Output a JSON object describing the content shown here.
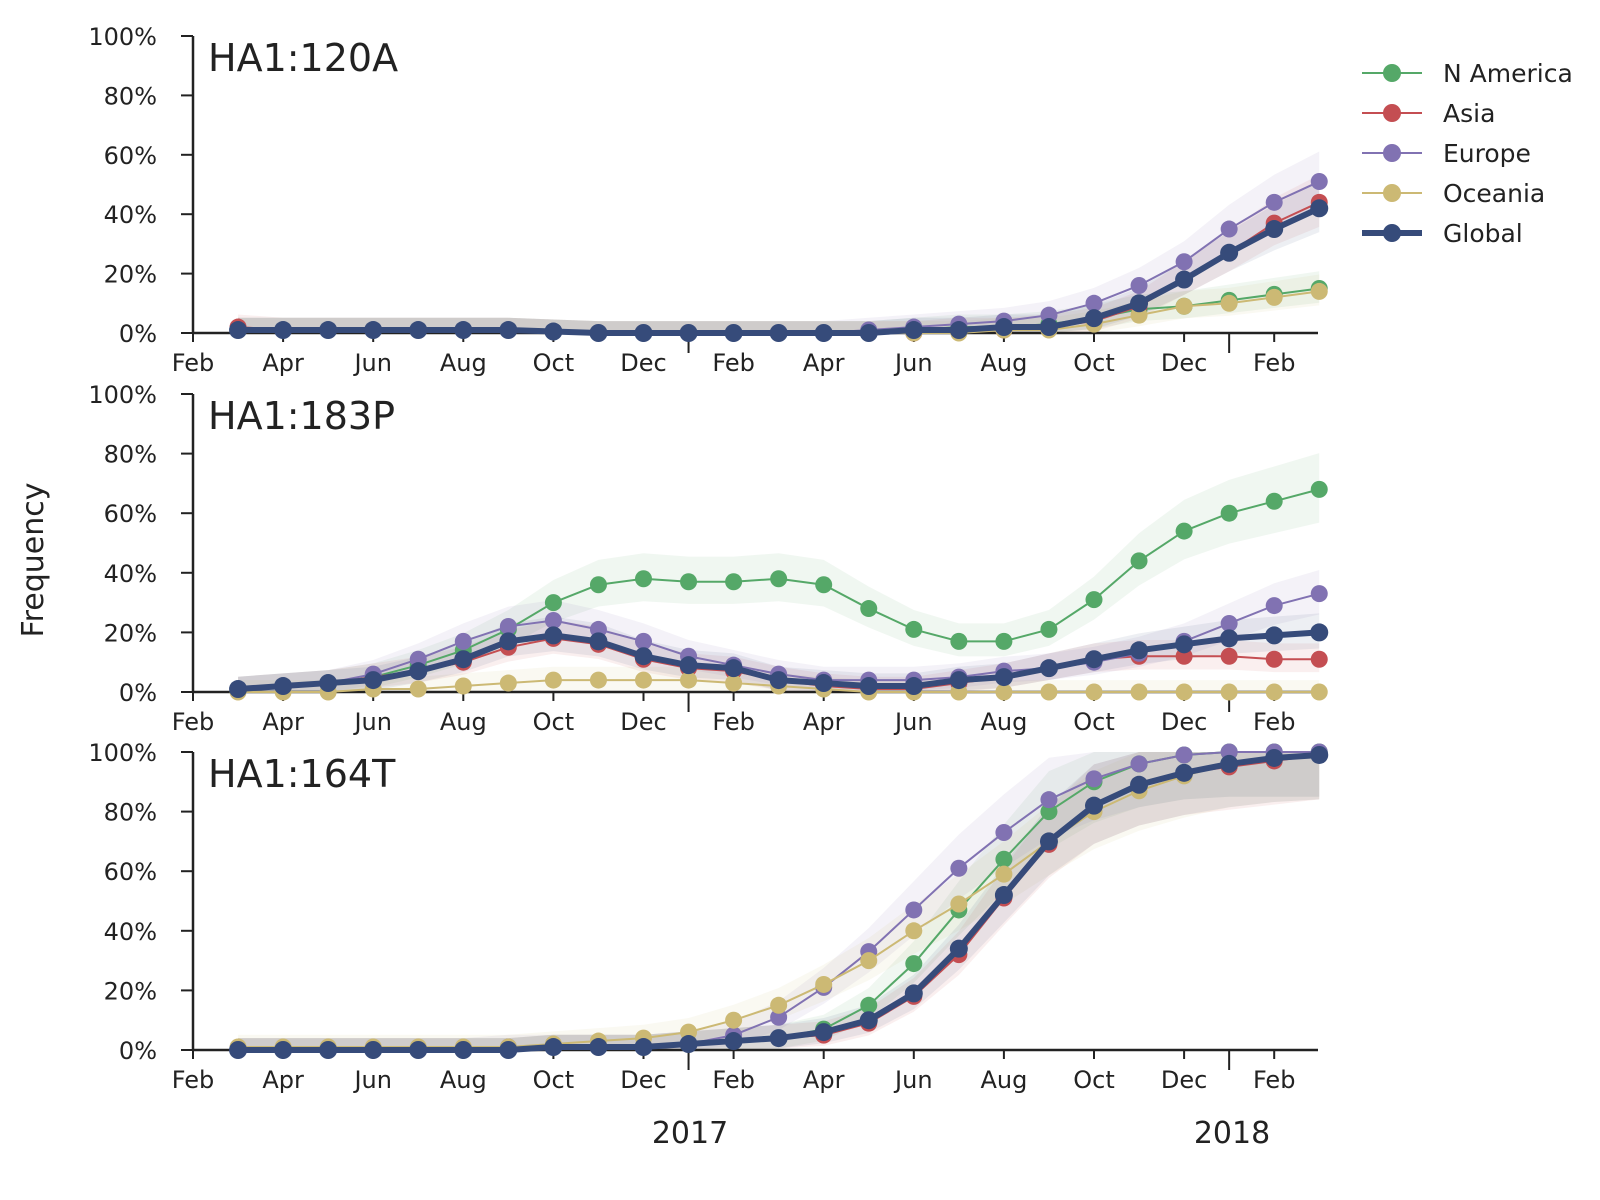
{
  "figure": {
    "ylabel": "Frequency",
    "year_labels": [
      "2017",
      "2018"
    ]
  },
  "legend": [
    {
      "name": "N America",
      "color": "#55a868"
    },
    {
      "name": "Asia",
      "color": "#c44e52"
    },
    {
      "name": "Europe",
      "color": "#8172b2"
    },
    {
      "name": "Oceania",
      "color": "#ccb974"
    },
    {
      "name": "Global",
      "color": "#364b7a"
    }
  ],
  "chart_data": [
    {
      "type": "line",
      "title": "HA1:120A",
      "xlabel": "",
      "ylabel": "Frequency",
      "x_tick_labels": [
        "Feb",
        "Apr",
        "Jun",
        "Aug",
        "Oct",
        "Dec",
        "Feb",
        "Apr",
        "Jun",
        "Aug",
        "Oct",
        "Dec",
        "Feb"
      ],
      "y_tick_labels": [
        "0%",
        "20%",
        "40%",
        "60%",
        "80%",
        "100%"
      ],
      "ylim": [
        0,
        100
      ],
      "x_months": [
        "2016-03",
        "2016-04",
        "2016-05",
        "2016-06",
        "2016-07",
        "2016-08",
        "2016-09",
        "2016-10",
        "2016-11",
        "2016-12",
        "2017-01",
        "2017-02",
        "2017-03",
        "2017-04",
        "2017-05",
        "2017-06",
        "2017-07",
        "2017-08",
        "2017-09",
        "2017-10",
        "2017-11",
        "2017-12",
        "2018-01",
        "2018-02",
        "2018-03"
      ],
      "series": [
        {
          "name": "N America",
          "color": "#55a868",
          "values": [
            1,
            1,
            1,
            1,
            1,
            1,
            1,
            0.5,
            0,
            0,
            0,
            0,
            0,
            0,
            0,
            1,
            2,
            2,
            3,
            5,
            8,
            9,
            11,
            13,
            15
          ]
        },
        {
          "name": "Asia",
          "color": "#c44e52",
          "values": [
            2,
            1,
            1,
            1,
            1,
            1,
            1,
            0.5,
            0,
            0,
            0,
            0,
            0,
            0,
            0,
            0,
            1,
            1,
            2,
            4,
            9,
            18,
            27,
            37,
            44
          ]
        },
        {
          "name": "Europe",
          "color": "#8172b2",
          "values": [
            1,
            1,
            1,
            1,
            1,
            1,
            1,
            0.5,
            0,
            0,
            0,
            0,
            0,
            0,
            1,
            2,
            3,
            4,
            6,
            10,
            16,
            24,
            35,
            44,
            51
          ]
        },
        {
          "name": "Oceania",
          "color": "#ccb974",
          "values": [
            1,
            1,
            1,
            1,
            1,
            1,
            1,
            0.5,
            0,
            0,
            0,
            0,
            0,
            0,
            0,
            0,
            0,
            1,
            1,
            3,
            6,
            9,
            10,
            12,
            14
          ]
        },
        {
          "name": "Global",
          "color": "#364b7a",
          "values": [
            1,
            1,
            1,
            1,
            1,
            1,
            1,
            0.5,
            0,
            0,
            0,
            0,
            0,
            0,
            0,
            1,
            1,
            2,
            2,
            5,
            10,
            18,
            27,
            35,
            42
          ]
        }
      ]
    },
    {
      "type": "line",
      "title": "HA1:183P",
      "xlabel": "",
      "ylabel": "Frequency",
      "x_tick_labels": [
        "Feb",
        "Apr",
        "Jun",
        "Aug",
        "Oct",
        "Dec",
        "Feb",
        "Apr",
        "Jun",
        "Aug",
        "Oct",
        "Dec",
        "Feb"
      ],
      "y_tick_labels": [
        "0%",
        "20%",
        "40%",
        "60%",
        "80%",
        "100%"
      ],
      "ylim": [
        0,
        100
      ],
      "x_months": [
        "2016-03",
        "2016-04",
        "2016-05",
        "2016-06",
        "2016-07",
        "2016-08",
        "2016-09",
        "2016-10",
        "2016-11",
        "2016-12",
        "2017-01",
        "2017-02",
        "2017-03",
        "2017-04",
        "2017-05",
        "2017-06",
        "2017-07",
        "2017-08",
        "2017-09",
        "2017-10",
        "2017-11",
        "2017-12",
        "2018-01",
        "2018-02",
        "2018-03"
      ],
      "series": [
        {
          "name": "N America",
          "color": "#55a868",
          "values": [
            1,
            2,
            3,
            5,
            9,
            14,
            21,
            30,
            36,
            38,
            37,
            37,
            38,
            36,
            28,
            21,
            17,
            17,
            21,
            31,
            44,
            54,
            60,
            64,
            68
          ]
        },
        {
          "name": "Asia",
          "color": "#c44e52",
          "values": [
            1,
            2,
            3,
            5,
            7,
            10,
            15,
            18,
            16,
            11,
            8,
            7,
            4,
            2,
            1,
            1,
            3,
            5,
            8,
            11,
            12,
            12,
            12,
            11,
            11
          ]
        },
        {
          "name": "Europe",
          "color": "#8172b2",
          "values": [
            1,
            2,
            3,
            6,
            11,
            17,
            22,
            24,
            21,
            17,
            12,
            9,
            6,
            4,
            4,
            4,
            5,
            7,
            8,
            10,
            13,
            17,
            23,
            29,
            33
          ]
        },
        {
          "name": "Oceania",
          "color": "#ccb974",
          "values": [
            0,
            0,
            0,
            1,
            1,
            2,
            3,
            4,
            4,
            4,
            4,
            3,
            2,
            1,
            0,
            0,
            0,
            0,
            0,
            0,
            0,
            0,
            0,
            0,
            0
          ]
        },
        {
          "name": "Global",
          "color": "#364b7a",
          "values": [
            1,
            2,
            3,
            4,
            7,
            11,
            17,
            19,
            17,
            12,
            9,
            8,
            4,
            3,
            2,
            2,
            4,
            5,
            8,
            11,
            14,
            16,
            18,
            19,
            20
          ]
        }
      ]
    },
    {
      "type": "line",
      "title": "HA1:164T",
      "xlabel": "",
      "ylabel": "Frequency",
      "x_tick_labels": [
        "Feb",
        "Apr",
        "Jun",
        "Aug",
        "Oct",
        "Dec",
        "Feb",
        "Apr",
        "Jun",
        "Aug",
        "Oct",
        "Dec",
        "Feb"
      ],
      "y_tick_labels": [
        "0%",
        "20%",
        "40%",
        "60%",
        "80%",
        "100%"
      ],
      "ylim": [
        0,
        100
      ],
      "x_months": [
        "2016-03",
        "2016-04",
        "2016-05",
        "2016-06",
        "2016-07",
        "2016-08",
        "2016-09",
        "2016-10",
        "2016-11",
        "2016-12",
        "2017-01",
        "2017-02",
        "2017-03",
        "2017-04",
        "2017-05",
        "2017-06",
        "2017-07",
        "2017-08",
        "2017-09",
        "2017-10",
        "2017-11",
        "2017-12",
        "2018-01",
        "2018-02",
        "2018-03"
      ],
      "series": [
        {
          "name": "N America",
          "color": "#55a868",
          "values": [
            0,
            0,
            0,
            0,
            0,
            0,
            0,
            1,
            1,
            1,
            2,
            3,
            4,
            7,
            15,
            29,
            47,
            64,
            80,
            90,
            96,
            99,
            100,
            100,
            100
          ]
        },
        {
          "name": "Asia",
          "color": "#c44e52",
          "values": [
            0,
            0,
            0,
            0,
            0,
            0,
            0,
            1,
            1,
            1,
            2,
            3,
            4,
            5,
            9,
            18,
            32,
            51,
            69,
            82,
            89,
            93,
            95,
            97,
            99
          ]
        },
        {
          "name": "Europe",
          "color": "#8172b2",
          "values": [
            0,
            0,
            0,
            0,
            0,
            0,
            1,
            1,
            1,
            1,
            2,
            5,
            11,
            21,
            33,
            47,
            61,
            73,
            84,
            91,
            96,
            99,
            100,
            100,
            100
          ]
        },
        {
          "name": "Oceania",
          "color": "#ccb974",
          "values": [
            1,
            1,
            1,
            1,
            1,
            1,
            1,
            2,
            3,
            4,
            6,
            10,
            15,
            22,
            30,
            40,
            49,
            59,
            70,
            80,
            87,
            92,
            96,
            98,
            99
          ]
        },
        {
          "name": "Global",
          "color": "#364b7a",
          "values": [
            0,
            0,
            0,
            0,
            0,
            0,
            0,
            1,
            1,
            1,
            2,
            3,
            4,
            6,
            10,
            19,
            34,
            52,
            70,
            82,
            89,
            93,
            96,
            98,
            99
          ]
        }
      ]
    }
  ]
}
